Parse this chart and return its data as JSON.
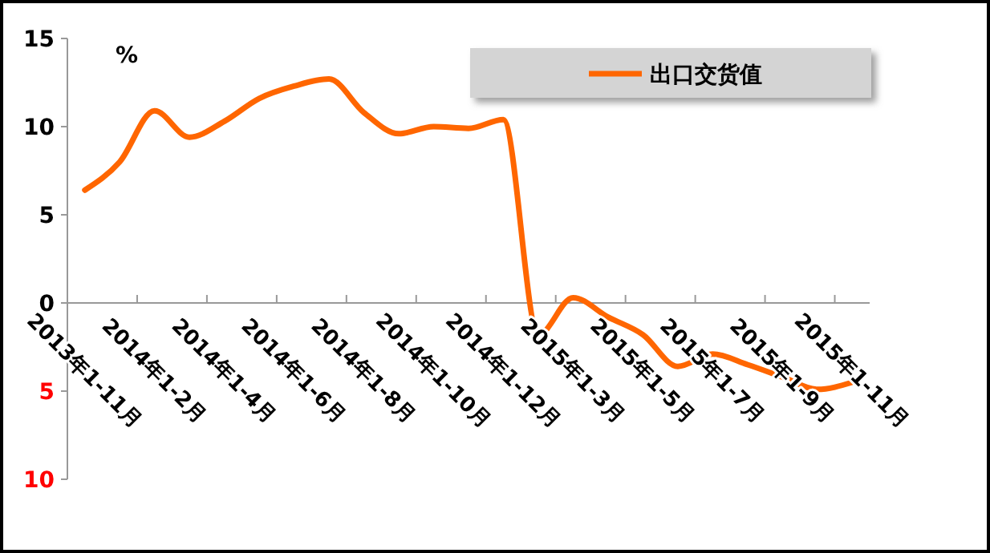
{
  "chart_data": {
    "type": "line",
    "ylabel": "%",
    "categories": [
      "2013年1-11月",
      null,
      "2014年1-2月",
      null,
      "2014年1-4月",
      null,
      "2014年1-6月",
      null,
      "2014年1-8月",
      null,
      "2014年1-10月",
      null,
      "2014年1-12月",
      null,
      "2015年1-3月",
      null,
      "2015年1-5月",
      null,
      "2015年1-7月",
      null,
      "2015年1-9月",
      null,
      "2015年1-11月"
    ],
    "series": [
      {
        "name": "出口交货值",
        "color": "#ff6600",
        "values": [
          6.4,
          8.0,
          10.9,
          9.4,
          10.3,
          11.6,
          12.3,
          12.7,
          10.8,
          9.6,
          10.0,
          9.9,
          10.4,
          -1.8,
          0.3,
          -0.8,
          -1.8,
          -3.6,
          -2.9,
          -3.5,
          -4.2,
          -4.9,
          -4.5
        ]
      }
    ],
    "ylim": [
      -10,
      15
    ],
    "yticks": [
      {
        "value": -10,
        "label": "10"
      },
      {
        "value": -5,
        "label": "5"
      },
      0,
      5,
      10,
      15
    ],
    "grid": false,
    "legend": "top right",
    "marker": "none",
    "line_style": "solid"
  }
}
